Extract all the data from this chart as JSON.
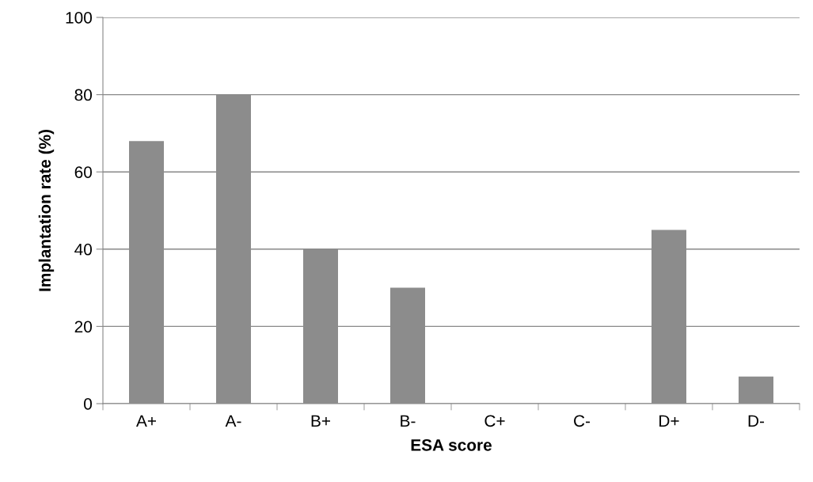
{
  "chart_data": {
    "type": "bar",
    "xlabel": "ESA score",
    "ylabel": "Implantation rate (%)",
    "categories": [
      "A+",
      "A-",
      "B+",
      "B-",
      "C+",
      "C-",
      "D+",
      "D-"
    ],
    "values": [
      68,
      80,
      40,
      30,
      0,
      0,
      45,
      7
    ],
    "color": "#8c8c8c",
    "ylim": [
      0,
      100
    ],
    "yticks": [
      0,
      20,
      40,
      60,
      80,
      100
    ],
    "grid": "y"
  }
}
